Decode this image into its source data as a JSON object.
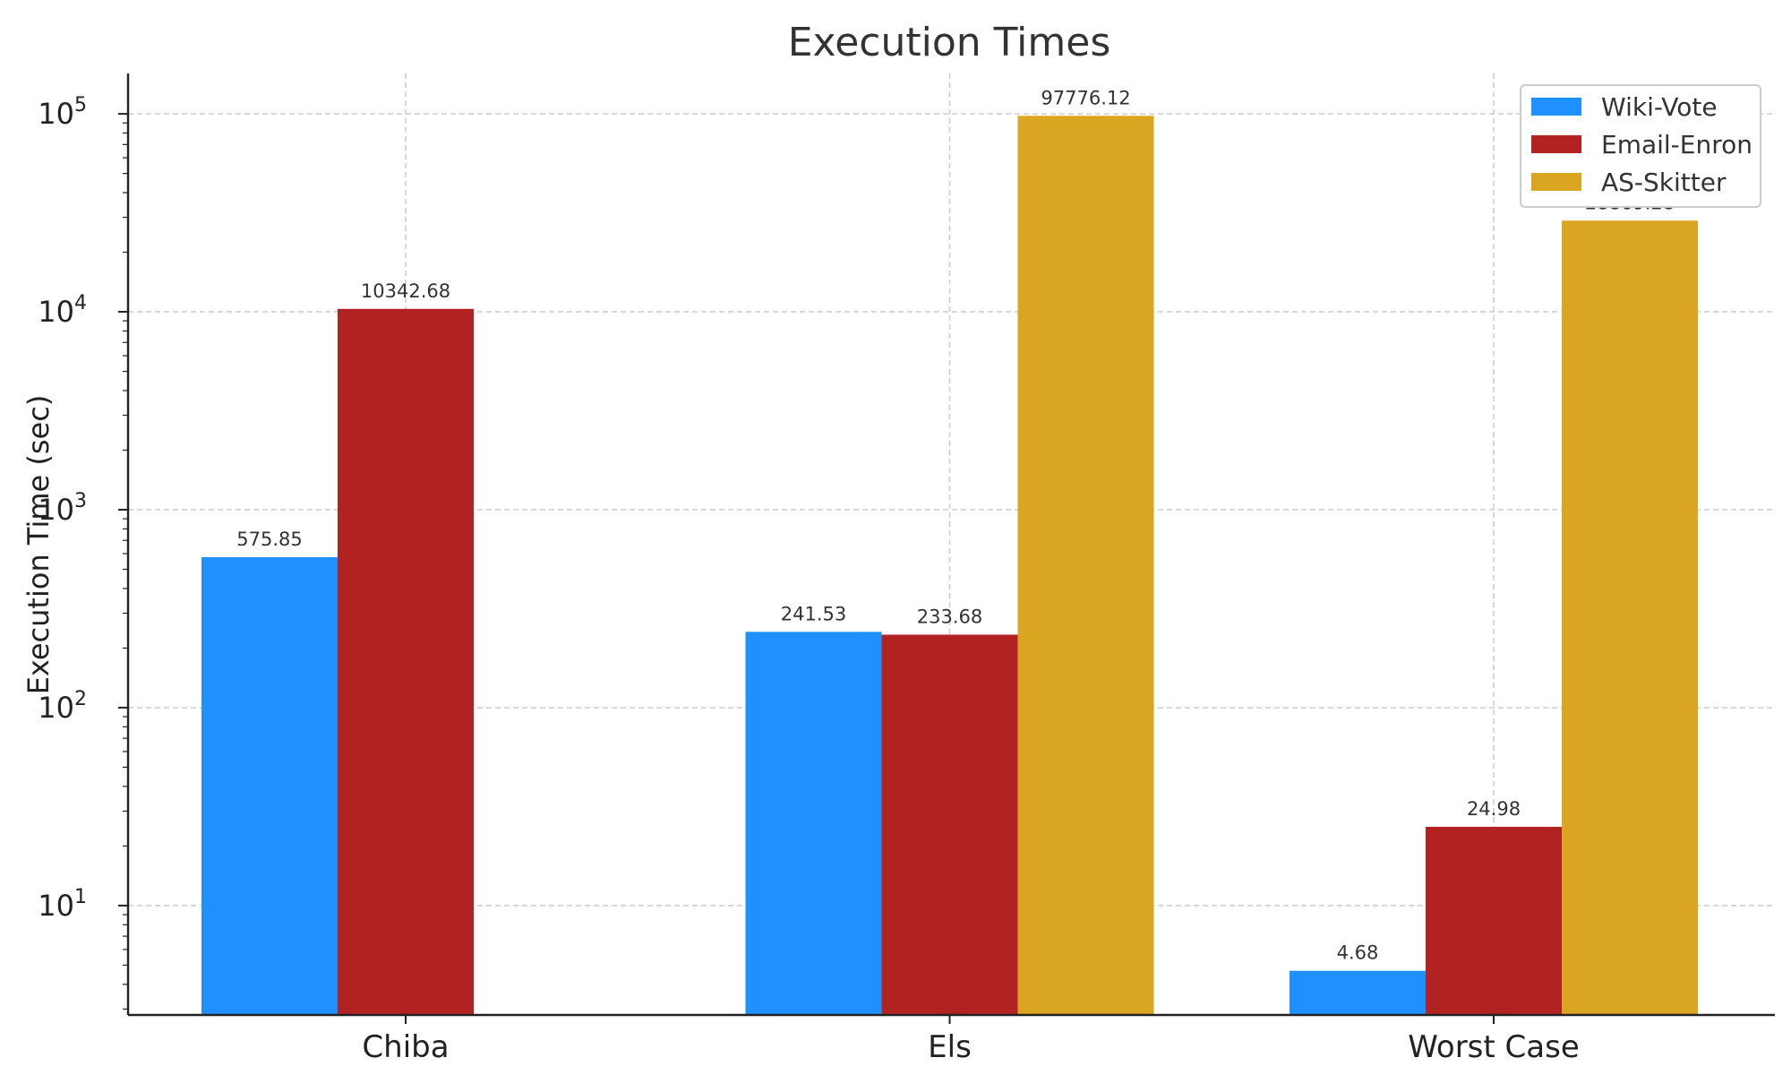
{
  "chart_data": {
    "type": "bar",
    "title": "Execution Times",
    "xlabel": "",
    "ylabel": "Execution Time (sec)",
    "yscale": "log",
    "ylim": [
      2.8,
      160000
    ],
    "yticks": [
      {
        "value": 10,
        "base": "10",
        "exp": "1"
      },
      {
        "value": 100,
        "base": "10",
        "exp": "2"
      },
      {
        "value": 1000,
        "base": "10",
        "exp": "3"
      },
      {
        "value": 10000,
        "base": "10",
        "exp": "4"
      },
      {
        "value": 100000,
        "base": "10",
        "exp": "5"
      }
    ],
    "categories": [
      "Chiba",
      "Els",
      "Worst Case"
    ],
    "series": [
      {
        "name": "Wiki-Vote",
        "color": "#1e90ff",
        "values": [
          575.85,
          241.53,
          4.68
        ],
        "labels": [
          "575.85",
          "241.53",
          "4.68"
        ]
      },
      {
        "name": "Email-Enron",
        "color": "#b22222",
        "values": [
          10342.68,
          233.68,
          24.98
        ],
        "labels": [
          "10342.68",
          "233.68",
          "24.98"
        ]
      },
      {
        "name": "AS-Skitter",
        "color": "#daa520",
        "values": [
          null,
          97776.12,
          28869.28
        ],
        "labels": [
          "",
          "97776.12",
          "28869.28"
        ]
      }
    ],
    "grid": true,
    "legend_position": "top-right"
  }
}
